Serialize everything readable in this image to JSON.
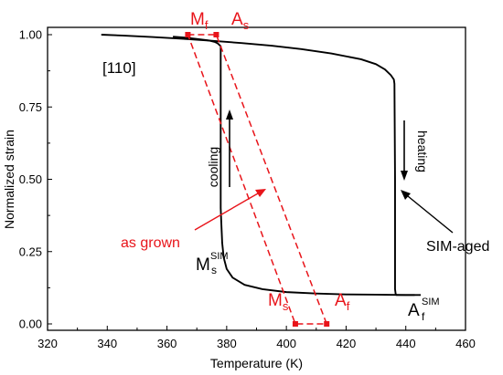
{
  "chart_data": {
    "type": "line",
    "xlabel": "Temperature (K)",
    "ylabel": "Normalized strain",
    "xlim": [
      320,
      460
    ],
    "ylim": [
      0.0,
      1.0
    ],
    "x_ticks": [
      "320",
      "340",
      "360",
      "380",
      "400",
      "420",
      "440",
      "460"
    ],
    "y_ticks": [
      "0.00",
      "0.25",
      "0.50",
      "0.75",
      "1.00"
    ],
    "grid": false,
    "series": [
      {
        "name": "SIM-aged",
        "color": "#000000",
        "style": "solid",
        "x": [
          338,
          345,
          355,
          365,
          375,
          385,
          395,
          405,
          415,
          425,
          430,
          433,
          435,
          436,
          436.2,
          436.4,
          436.4,
          436.6,
          436.8,
          437,
          440,
          445
        ],
        "y": [
          1.0,
          0.997,
          0.992,
          0.986,
          0.979,
          0.971,
          0.962,
          0.95,
          0.935,
          0.915,
          0.898,
          0.88,
          0.86,
          0.845,
          0.83,
          0.5,
          0.12,
          0.104,
          0.1,
          0.1,
          0.1,
          0.1
        ]
      },
      {
        "name": "SIM-aged cooling",
        "color": "#000000",
        "style": "solid",
        "x": [
          443,
          440,
          430,
          420,
          410,
          400,
          392,
          386,
          382,
          380,
          379,
          378.5,
          378.2,
          378,
          378,
          378,
          377.5,
          377,
          376,
          374,
          370,
          366,
          362
        ],
        "y": [
          0.1,
          0.1,
          0.101,
          0.102,
          0.105,
          0.11,
          0.12,
          0.135,
          0.16,
          0.19,
          0.23,
          0.28,
          0.35,
          0.4,
          0.7,
          0.96,
          0.965,
          0.97,
          0.975,
          0.98,
          0.985,
          0.99,
          0.993
        ]
      },
      {
        "name": "as grown",
        "color": "#e8141a",
        "style": "dashed",
        "x": [
          367,
          376.5,
          413.5,
          403,
          367
        ],
        "y": [
          1.0,
          1.0,
          0.0,
          0.0,
          1.0
        ]
      }
    ],
    "annotations": {
      "panel": "[110]",
      "mf_main": "M",
      "mf_sub": "f",
      "as_main": "A",
      "as_sub": "s",
      "ms_main": "M",
      "ms_sub": "s",
      "af_main": "A",
      "af_sub": "f",
      "ms_sim_main": "M",
      "ms_sim_sub": "s",
      "ms_sim_sup": "SIM",
      "af_sim_main": "A",
      "af_sim_sub": "f",
      "af_sim_sup": "SIM",
      "cooling": "cooling",
      "heating": "heating",
      "as_grown": "as grown",
      "sim_aged": "SIM-aged"
    },
    "markers": [
      {
        "label": "Mf",
        "x": 367,
        "y": 1.0
      },
      {
        "label": "As",
        "x": 376.5,
        "y": 1.0
      },
      {
        "label": "Ms",
        "x": 403,
        "y": 0.0
      },
      {
        "label": "Af",
        "x": 413.5,
        "y": 0.0
      }
    ],
    "colors": {
      "red": "#e8141a",
      "black": "#000000"
    }
  }
}
